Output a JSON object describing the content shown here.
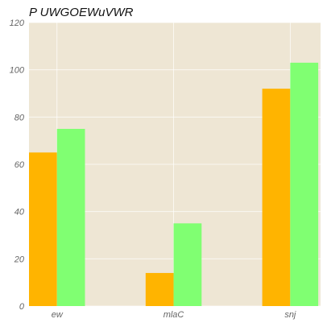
{
  "chart_data": {
    "type": "bar",
    "title": "P UWGOEWuVWR",
    "xlabel": "",
    "ylabel": "",
    "categories": [
      "ew",
      "mlaC",
      "snj"
    ],
    "series": [
      {
        "values": [
          65,
          14,
          92
        ],
        "color": "#FFB400"
      },
      {
        "values": [
          75,
          35,
          103
        ],
        "color": "#80FF72"
      }
    ],
    "ylim": [
      0,
      120
    ],
    "yticks": [
      0,
      20,
      40,
      60,
      80,
      100,
      120
    ],
    "grid": true,
    "background": "#EEE6D4"
  }
}
